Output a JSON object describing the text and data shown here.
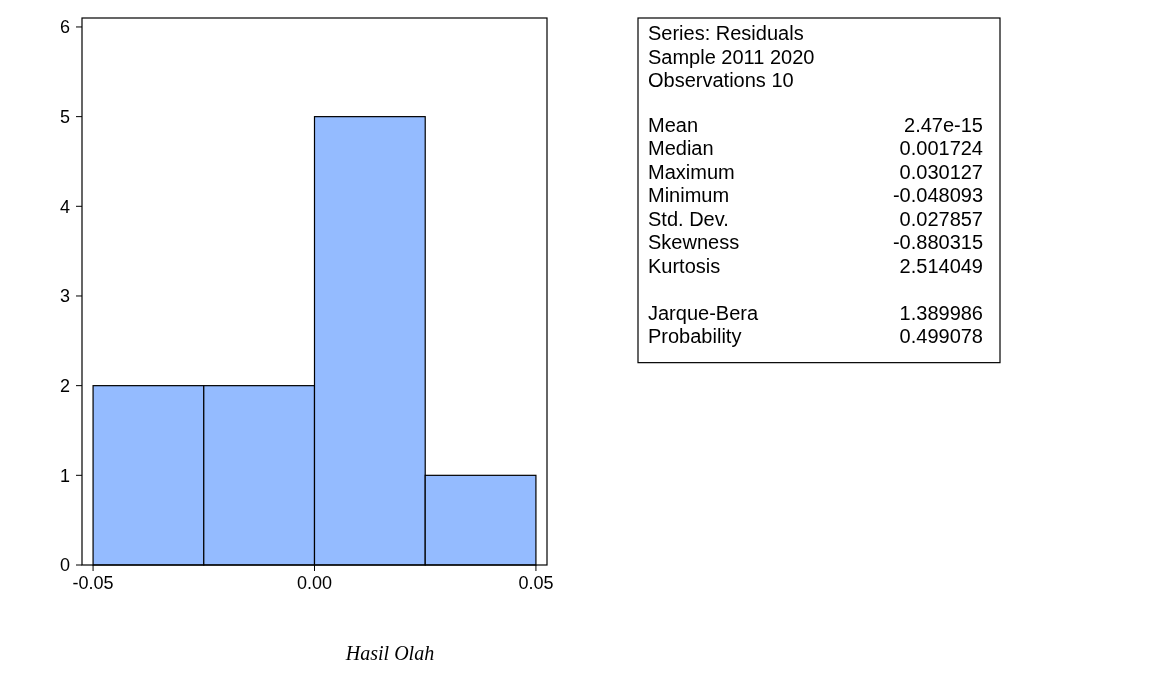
{
  "chart_data": [
    {
      "type": "histogram",
      "bins": [
        -0.05,
        -0.025,
        0,
        0.025,
        0.05
      ],
      "values": [
        2,
        2,
        5,
        1
      ],
      "color": "#94bbff",
      "xlim": [
        -0.0525,
        0.0525
      ],
      "xticks": [
        -0.05,
        {
          "value": 0,
          "label": "0.00"
        },
        0.05
      ],
      "ylim": [
        0,
        6.1
      ],
      "yticks": [
        0,
        1,
        2,
        3,
        4,
        5,
        6
      ],
      "grid": false,
      "annotations": [
        "Hasil Olah"
      ]
    },
    {
      "type": "other",
      "annotations": [
        "Series: Residuals",
        "Sample 2011 2020",
        "Observations 10"
      ],
      "categories": [
        "Mean",
        "Median",
        "Maximum",
        "Minimum",
        "Std. Dev.",
        "Skewness",
        "Kurtosis",
        null,
        "Jarque-Bera",
        "Probability"
      ],
      "value_labels": [
        "2.47e-15",
        "0.001724",
        "0.030127",
        "-0.048093",
        "0.027857",
        "-0.880315",
        "2.514049",
        null,
        "1.389986",
        "0.499078"
      ]
    }
  ]
}
